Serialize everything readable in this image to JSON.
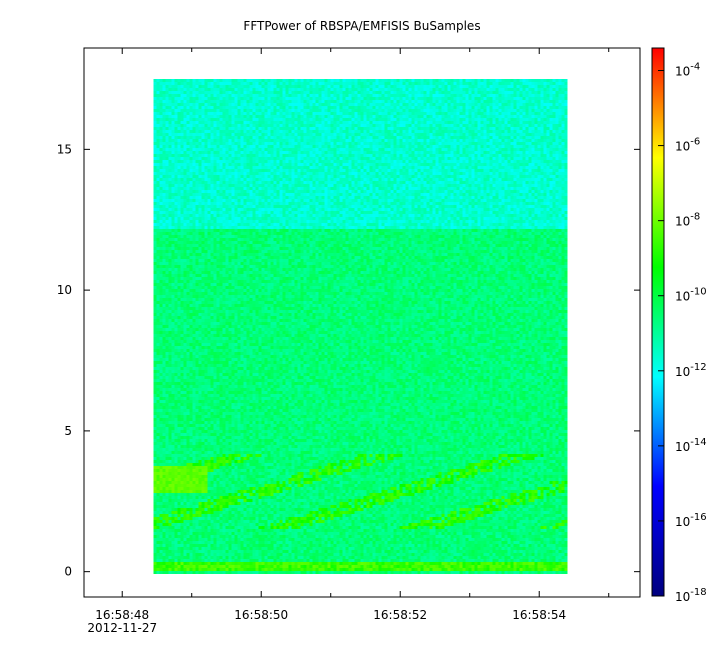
{
  "chart_data": {
    "type": "heatmap",
    "title": "FFTPower of RBSPA/EMFISIS  BuSamples",
    "xlabel": "",
    "ylabel": "",
    "x_ticks": [
      {
        "value": 48,
        "label": "16:58:48",
        "sublabel": "2012-11-27"
      },
      {
        "value": 50,
        "label": "16:58:50"
      },
      {
        "value": 52,
        "label": "16:58:52"
      },
      {
        "value": 54,
        "label": "16:58:54"
      }
    ],
    "x_minor_ticks": [
      49,
      51,
      53,
      55
    ],
    "xlim": [
      47.45,
      55.45
    ],
    "y_ticks": [
      0,
      5,
      10,
      15
    ],
    "ylim": [
      -0.9,
      18.6
    ],
    "data_extent": {
      "x": [
        48.45,
        54.4
      ],
      "y": [
        0,
        17.5
      ]
    },
    "bands": [
      {
        "y": [
          0,
          0.35
        ],
        "log_power": -8.6
      },
      {
        "y": [
          0.35,
          12.2
        ],
        "log_power": -10.6
      },
      {
        "y": [
          12.2,
          17.5
        ],
        "log_power": -11.6
      }
    ],
    "features": [
      {
        "description": "",
        "x": [
          48.45,
          54.4
        ],
        "y": [
          1.5,
          4.2
        ],
        "log_power": -8.8
      }
    ],
    "colorbar": {
      "scale": "log",
      "range": [
        -18,
        -3.4
      ],
      "ticks": [
        {
          "exp": -4,
          "label": "-4"
        },
        {
          "exp": -6,
          "label": "-6"
        },
        {
          "exp": -8,
          "label": "-8"
        },
        {
          "exp": -10,
          "label": "-10"
        },
        {
          "exp": -12,
          "label": "-12"
        },
        {
          "exp": -14,
          "label": "-14"
        },
        {
          "exp": -16,
          "label": "-16"
        },
        {
          "exp": -18,
          "label": "-18"
        }
      ],
      "base_label": "10",
      "colormap": [
        "#00007f",
        "#0000ff",
        "#00ffff",
        "#00ff00",
        "#ffff00",
        "#ff0000"
      ]
    }
  }
}
